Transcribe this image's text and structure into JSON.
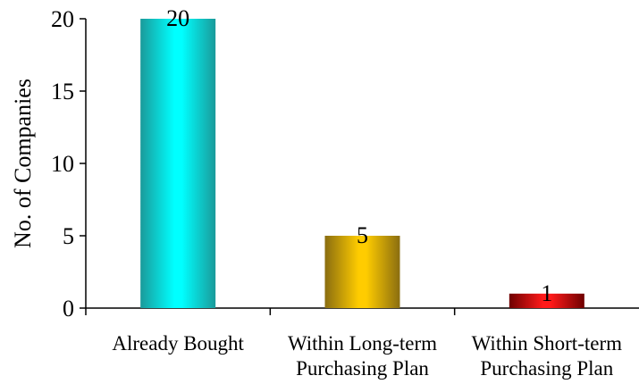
{
  "chart_data": {
    "type": "bar",
    "categories": [
      [
        "Already Bought"
      ],
      [
        "Within Long-term",
        "Purchasing Plan"
      ],
      [
        "Within Short-term",
        "Purchasing Plan"
      ]
    ],
    "values": [
      20,
      5,
      1
    ],
    "data_labels": [
      "20",
      "5",
      "1"
    ],
    "ylabel": "No. of Companies",
    "xlabel": "",
    "title": "",
    "ylim": [
      0,
      20
    ],
    "yticks": [
      0,
      5,
      10,
      15,
      20
    ],
    "grid": false,
    "legend": "none",
    "bar_colors": [
      {
        "dark": "#1a9a9a",
        "light": "#00ffff"
      },
      {
        "dark": "#8a6d10",
        "light": "#ffcc00"
      },
      {
        "dark": "#6e0000",
        "light": "#ff1a1a"
      }
    ]
  }
}
